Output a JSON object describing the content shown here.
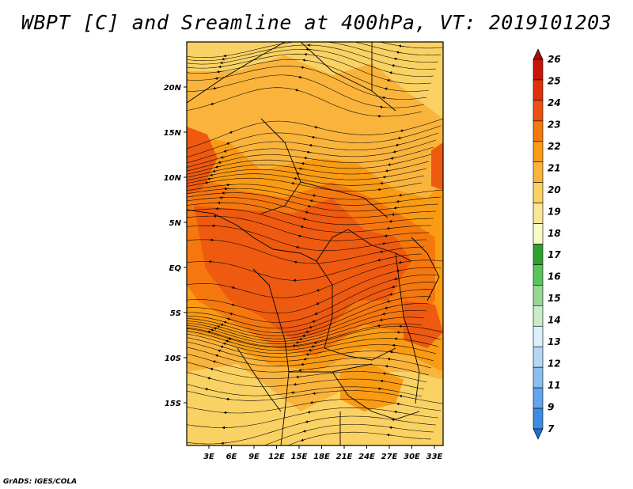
{
  "title": "WBPT [C] and Sreamline at 400hPa, VT: 2019101203",
  "credit": "GrADS: IGES/COLA",
  "lat_labels": [
    "20N",
    "15N",
    "10N",
    "5N",
    "EQ",
    "5S",
    "10S",
    "15S"
  ],
  "lon_labels": [
    "3E",
    "6E",
    "9E",
    "12E",
    "15E",
    "18E",
    "21E",
    "24E",
    "27E",
    "30E",
    "33E"
  ],
  "colorbar": {
    "levels": [
      "26",
      "25",
      "24",
      "23",
      "22",
      "21",
      "20",
      "19",
      "18",
      "17",
      "16",
      "15",
      "14",
      "13",
      "12",
      "11",
      "9",
      "7"
    ],
    "colors": [
      "#a50f0f",
      "#c8140a",
      "#e1300a",
      "#f0500f",
      "#f5780f",
      "#fa9b14",
      "#fab43c",
      "#fad264",
      "#fae696",
      "#fafac8",
      "#2da02d",
      "#5ac35a",
      "#96d796",
      "#c8ebc8",
      "#dcf0fa",
      "#b4d7f5",
      "#8cbef0",
      "#64a5eb",
      "#3c8ce1",
      "#1e6ed2"
    ]
  },
  "map_colors": {
    "c19": "#fad264",
    "c20": "#fab43c",
    "c21": "#fa9b14",
    "c22": "#f5780f",
    "c23": "#ee5a10"
  }
}
